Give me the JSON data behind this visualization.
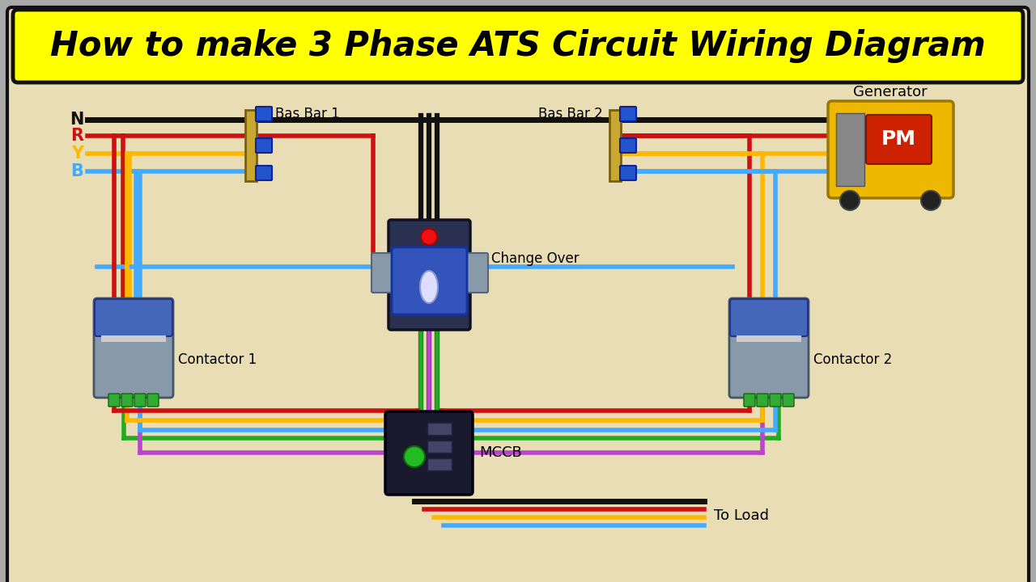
{
  "title": "How to make 3 Phase ATS Circuit Wiring Diagram",
  "title_bg": "#FFFF00",
  "diagram_bg_top": "#E8DDB5",
  "diagram_bg_bot": "#D4C48A",
  "outer_bg": "#AAAAAA",
  "wire_N": "#111111",
  "wire_R": "#CC1111",
  "wire_Y": "#FFB800",
  "wire_B": "#44AAFF",
  "wire_G": "#22AA22",
  "wire_P": "#BB44CC",
  "wire_lw": 4.0,
  "label_basbar1": "Bas Bar 1",
  "label_basbar2": "Bas Bar 2",
  "label_co": "Change Over",
  "label_c1": "Contactor 1",
  "label_c2": "Contactor 2",
  "label_mccb": "MCCB",
  "label_load": "To Load",
  "label_gen": "Generator",
  "fig_w": 12.8,
  "fig_h": 7.2,
  "dpi": 100
}
